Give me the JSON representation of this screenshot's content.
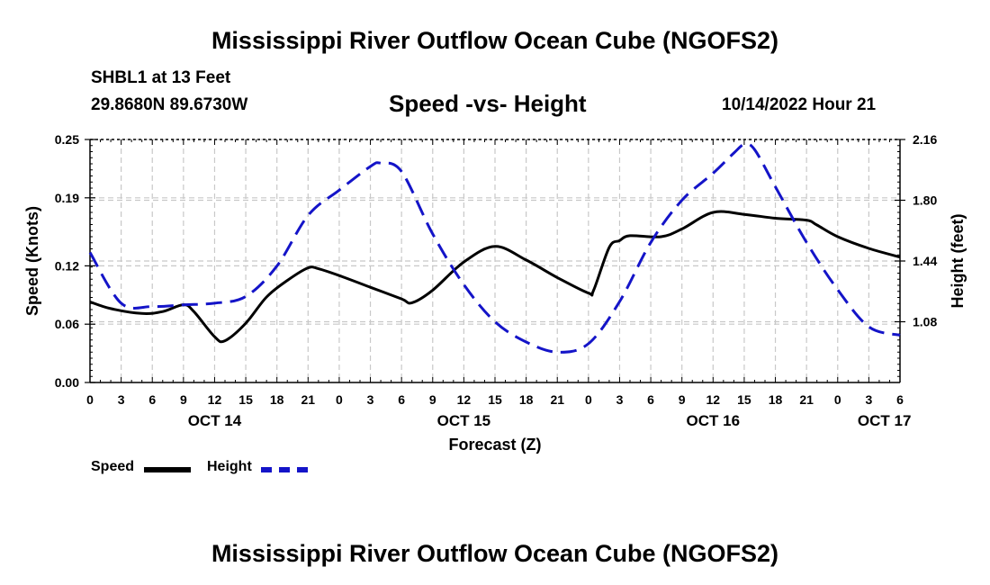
{
  "header": {
    "main_title": "Mississippi River Outflow Ocean Cube (NGOFS2)",
    "station": "SHBL1 at 13 Feet",
    "coords": "29.8680N  89.6730W",
    "subtitle": "Speed -vs- Height",
    "datetime": "10/14/2022 Hour 21"
  },
  "footer": {
    "repeated_title": "Mississippi River Outflow Ocean Cube (NGOFS2)"
  },
  "legend": {
    "speed_label": "Speed",
    "height_label": "Height",
    "speed_color": "#000000",
    "height_color": "#1414c8"
  },
  "chart_data": {
    "type": "line",
    "xlabel": "Forecast (Z)",
    "ylabel": "Speed (Knots)",
    "y2label": "Height (feet)",
    "xlim": [
      0,
      78
    ],
    "ylim": [
      0,
      0.25
    ],
    "y2lim": [
      0.72,
      2.16
    ],
    "x_ticks": [
      0,
      3,
      6,
      9,
      12,
      15,
      18,
      21,
      24,
      27,
      30,
      33,
      36,
      39,
      42,
      45,
      48,
      51,
      54,
      57,
      60,
      63,
      66,
      69,
      72,
      75,
      78
    ],
    "x_tick_labels": [
      "0",
      "3",
      "6",
      "9",
      "12",
      "15",
      "18",
      "21",
      "0",
      "3",
      "6",
      "9",
      "12",
      "15",
      "18",
      "21",
      "0",
      "3",
      "6",
      "9",
      "12",
      "15",
      "18",
      "21",
      "0",
      "3",
      "6"
    ],
    "day_labels": [
      {
        "x": 12,
        "label": "OCT 14"
      },
      {
        "x": 36,
        "label": "OCT 15"
      },
      {
        "x": 60,
        "label": "OCT 16"
      },
      {
        "x": 76.5,
        "label": "OCT 17"
      }
    ],
    "y_ticks": [
      0.0,
      0.06,
      0.12,
      0.19,
      0.25
    ],
    "y_tick_labels": [
      "0.00",
      "0.06",
      "0.12",
      "0.19",
      "0.25"
    ],
    "y2_ticks": [
      1.08,
      1.44,
      1.8,
      2.16
    ],
    "y2_tick_labels": [
      "1.08",
      "1.44",
      "1.80",
      "2.16"
    ],
    "grid": true,
    "series": [
      {
        "name": "Speed",
        "axis": "left",
        "color": "#000000",
        "dash": "solid",
        "x": [
          0,
          2,
          5,
          7,
          9,
          10,
          12,
          13,
          15,
          17,
          19,
          21,
          22,
          24,
          27,
          30,
          31,
          33,
          36,
          39,
          42,
          45,
          48,
          48.5,
          50,
          51,
          52,
          55,
          57,
          60,
          63,
          66,
          69,
          70,
          72,
          75,
          78
        ],
        "y": [
          0.083,
          0.076,
          0.071,
          0.073,
          0.08,
          0.073,
          0.047,
          0.043,
          0.061,
          0.088,
          0.105,
          0.118,
          0.117,
          0.11,
          0.098,
          0.086,
          0.082,
          0.095,
          0.124,
          0.14,
          0.126,
          0.108,
          0.092,
          0.095,
          0.139,
          0.146,
          0.151,
          0.15,
          0.158,
          0.175,
          0.173,
          0.169,
          0.167,
          0.162,
          0.15,
          0.138,
          0.129
        ]
      },
      {
        "name": "Height",
        "axis": "right",
        "color": "#1414c8",
        "dash": "dashed",
        "x": [
          0,
          3,
          6,
          9,
          12,
          15,
          18,
          21,
          24,
          27,
          28,
          30,
          33,
          36,
          39,
          42,
          45,
          48,
          51,
          54,
          57,
          60,
          62,
          63,
          64,
          66,
          69,
          72,
          75,
          78
        ],
        "y": [
          1.49,
          1.19,
          1.17,
          1.18,
          1.19,
          1.23,
          1.41,
          1.71,
          1.86,
          2.0,
          2.02,
          1.97,
          1.6,
          1.3,
          1.08,
          0.96,
          0.9,
          0.95,
          1.2,
          1.55,
          1.8,
          1.96,
          2.08,
          2.13,
          2.1,
          1.88,
          1.55,
          1.27,
          1.05,
          1.0
        ]
      }
    ]
  }
}
